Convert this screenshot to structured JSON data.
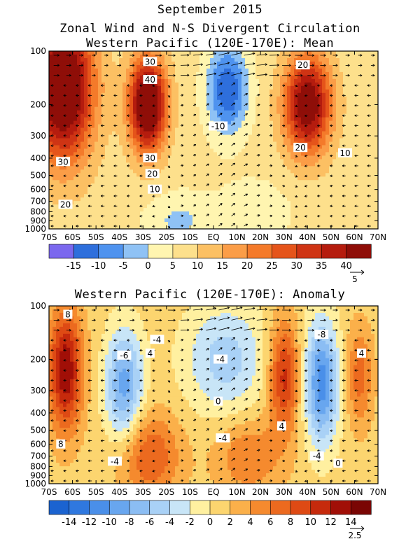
{
  "header": {
    "title": "September 2015",
    "subtitle": "Zonal Wind and N-S Divergent Circulation"
  },
  "chart_data": [
    {
      "type": "heatmap",
      "title": "Western Pacific (120E-170E): Mean",
      "x_ticks": [
        "70S",
        "60S",
        "50S",
        "40S",
        "30S",
        "20S",
        "10S",
        "EQ",
        "10N",
        "20N",
        "30N",
        "40N",
        "50N",
        "60N",
        "70N"
      ],
      "y_ticks": [
        "100",
        "200",
        "300",
        "400",
        "500",
        "600",
        "700",
        "800",
        "900",
        "1000"
      ],
      "y_values": [
        100,
        200,
        300,
        400,
        500,
        600,
        700,
        800,
        900,
        1000
      ],
      "y_scale": "log",
      "colorbar_labels": [
        "-15",
        "-10",
        "-5",
        "0",
        "5",
        "10",
        "15",
        "20",
        "25",
        "30",
        "35",
        "40"
      ],
      "colorbar_levels": [
        -20,
        -15,
        -10,
        -5,
        0,
        5,
        10,
        15,
        20,
        25,
        30,
        35,
        40,
        45
      ],
      "colors": [
        "#7b68ee",
        "#2e6fdc",
        "#4f93ef",
        "#8fc2f5",
        "#fff5b0",
        "#fde08c",
        "#fcc063",
        "#fb9d47",
        "#f47a2a",
        "#e5541a",
        "#cf3414",
        "#b51c0e",
        "#8f0e08"
      ],
      "contour_labels": [
        {
          "text": "30",
          "lat": -27,
          "p": 115
        },
        {
          "text": "40",
          "lat": -27,
          "p": 145
        },
        {
          "text": "30",
          "lat": -64,
          "p": 420
        },
        {
          "text": "20",
          "lat": -63,
          "p": 730
        },
        {
          "text": "30",
          "lat": -27,
          "p": 400
        },
        {
          "text": "20",
          "lat": -26,
          "p": 490
        },
        {
          "text": "10",
          "lat": -25,
          "p": 600
        },
        {
          "text": "-10",
          "lat": 2,
          "p": 265
        },
        {
          "text": "20",
          "lat": 38,
          "p": 120
        },
        {
          "text": "20",
          "lat": 37,
          "p": 350
        },
        {
          "text": "10",
          "lat": 56,
          "p": 375
        }
      ],
      "jets": [
        {
          "lat": -64,
          "p": 160,
          "amp": 48,
          "wx": 9,
          "wy": 0.65
        },
        {
          "lat": -28,
          "p": 200,
          "amp": 48,
          "wx": 5.5,
          "wy": 0.42
        },
        {
          "lat": 40,
          "p": 200,
          "amp": 40,
          "wx": 7,
          "wy": 0.45
        },
        {
          "lat": 6,
          "p": 165,
          "amp": -22,
          "wx": 6,
          "wy": 0.4
        },
        {
          "lat": -15,
          "p": 900,
          "amp": -8,
          "wx": 10,
          "wy": 0.25
        },
        {
          "lat": 18,
          "p": 780,
          "amp": -5,
          "wx": 12,
          "wy": 0.3
        }
      ],
      "background": 7,
      "arrow_scale_label": "5"
    },
    {
      "type": "heatmap",
      "title": "Western Pacific (120E-170E): Anomaly",
      "x_ticks": [
        "70S",
        "60S",
        "50S",
        "40S",
        "30S",
        "20S",
        "10S",
        "EQ",
        "10N",
        "20N",
        "30N",
        "40N",
        "50N",
        "60N",
        "70N"
      ],
      "y_ticks": [
        "100",
        "200",
        "300",
        "400",
        "500",
        "600",
        "700",
        "800",
        "900",
        "1000"
      ],
      "y_values": [
        100,
        200,
        300,
        400,
        500,
        600,
        700,
        800,
        900,
        1000
      ],
      "y_scale": "log",
      "colorbar_labels": [
        "-14",
        "-12",
        "-10",
        "-8",
        "-6",
        "-4",
        "-2",
        "0",
        "2",
        "4",
        "6",
        "8",
        "10",
        "12",
        "14"
      ],
      "colorbar_levels": [
        -16,
        -14,
        -12,
        -10,
        -8,
        -6,
        -4,
        -2,
        0,
        2,
        4,
        6,
        8,
        10,
        12,
        14,
        16
      ],
      "colors": [
        "#1b63d0",
        "#2f78df",
        "#4a8fe9",
        "#68a6ef",
        "#8bbdf3",
        "#a9d1f6",
        "#c8e5f7",
        "#fff0a0",
        "#fcd56f",
        "#fbb04a",
        "#f58a2e",
        "#ec6a1f",
        "#de4a14",
        "#c62a0c",
        "#a10f07",
        "#7a0604"
      ],
      "contour_labels": [
        {
          "text": "8",
          "lat": -62,
          "p": 112
        },
        {
          "text": "-4",
          "lat": -24,
          "p": 155
        },
        {
          "text": "-6",
          "lat": -38,
          "p": 190
        },
        {
          "text": "4",
          "lat": -27,
          "p": 185
        },
        {
          "text": "-4",
          "lat": 3,
          "p": 200
        },
        {
          "text": "-8",
          "lat": 46,
          "p": 145
        },
        {
          "text": "4",
          "lat": 63,
          "p": 185
        },
        {
          "text": "0",
          "lat": 2,
          "p": 345
        },
        {
          "text": "-4",
          "lat": 4,
          "p": 555
        },
        {
          "text": "8",
          "lat": -65,
          "p": 600
        },
        {
          "text": "4",
          "lat": 29,
          "p": 475
        },
        {
          "text": "-4",
          "lat": 44,
          "p": 700
        },
        {
          "text": "-4",
          "lat": -42,
          "p": 750
        },
        {
          "text": "0",
          "lat": 53,
          "p": 770
        }
      ],
      "jets": [
        {
          "lat": -63,
          "p": 230,
          "amp": 13,
          "wx": 5,
          "wy": 0.55
        },
        {
          "lat": -38,
          "p": 280,
          "amp": -10,
          "wx": 5.5,
          "wy": 0.5
        },
        {
          "lat": -27,
          "p": 700,
          "amp": 7,
          "wx": 9,
          "wy": 0.4
        },
        {
          "lat": 5,
          "p": 200,
          "amp": -6,
          "wx": 12,
          "wy": 0.5
        },
        {
          "lat": 30,
          "p": 250,
          "amp": 10,
          "wx": 4.5,
          "wy": 0.5
        },
        {
          "lat": 46,
          "p": 270,
          "amp": -12,
          "wx": 5,
          "wy": 0.55
        },
        {
          "lat": 62,
          "p": 250,
          "amp": 6,
          "wx": 4,
          "wy": 0.45
        },
        {
          "lat": 15,
          "p": 700,
          "amp": 5,
          "wx": 10,
          "wy": 0.35
        }
      ],
      "background": 1,
      "arrow_scale_label": "2.5"
    }
  ]
}
